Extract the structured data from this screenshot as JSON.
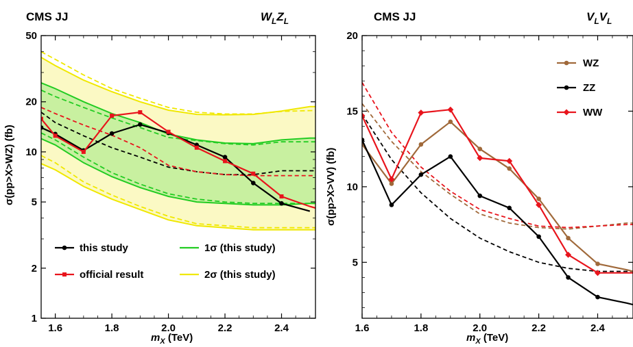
{
  "chart_data": [
    {
      "type": "line",
      "header_left": "CMS JJ",
      "header_right": "W",
      "header_right_parts": [
        "W",
        "L",
        "Z",
        "L"
      ],
      "xlabel_parts": [
        "m",
        "X",
        " (TeV)"
      ],
      "ylabel": "σ(pp>X>WZ) (fb)",
      "xlim": [
        1.55,
        2.52
      ],
      "ylim": [
        1,
        50
      ],
      "y_scale": "log",
      "x_ticks": [
        "1.6",
        "1.8",
        "2.0",
        "2.2",
        "2.4"
      ],
      "y_ticks": [
        "1",
        "2",
        "5",
        "10",
        "20",
        "50"
      ],
      "legend_position": "bottom",
      "x": [
        1.55,
        1.6,
        1.7,
        1.8,
        1.9,
        2.0,
        2.1,
        2.2,
        2.3,
        2.4,
        2.5,
        2.52
      ],
      "series": [
        {
          "name": "this study",
          "color": "#000000",
          "style": "solid-dots",
          "x": [
            1.55,
            1.6,
            1.7,
            1.8,
            1.9,
            2.0,
            2.1,
            2.2,
            2.3,
            2.4,
            2.5
          ],
          "values": [
            14.0,
            12.8,
            10.2,
            12.9,
            14.6,
            13.0,
            11.0,
            9.3,
            6.5,
            4.9,
            4.4
          ]
        },
        {
          "name": "official result",
          "color": "#e8141c",
          "style": "solid-squares",
          "x": [
            1.55,
            1.6,
            1.7,
            1.8,
            1.9,
            2.0,
            2.1,
            2.2,
            2.3,
            2.4,
            2.5,
            2.52
          ],
          "values": [
            15.8,
            12.5,
            10.0,
            16.5,
            17.3,
            13.2,
            10.6,
            8.8,
            7.4,
            5.4,
            4.7,
            4.6
          ]
        },
        {
          "name": "",
          "color": "#000000",
          "style": "dashed",
          "values": [
            17.3,
            15.0,
            12.5,
            10.6,
            9.3,
            8.1,
            7.6,
            7.3,
            7.3,
            7.7,
            7.7,
            7.7
          ]
        },
        {
          "name": "",
          "color": "#e8141c",
          "style": "dashed",
          "values": [
            18.5,
            17.0,
            14.5,
            12.6,
            10.6,
            8.3,
            7.6,
            7.3,
            7.2,
            7.2,
            7.2,
            7.2
          ]
        },
        {
          "name": "1σ (this study)",
          "color": "#22cc22",
          "style": "band",
          "low": [
            12.0,
            11.0,
            8.6,
            7.1,
            6.1,
            5.4,
            5.0,
            4.9,
            4.8,
            4.8,
            4.9,
            4.9
          ],
          "high": [
            26.0,
            24.0,
            20.0,
            17.0,
            15.0,
            12.8,
            11.8,
            11.3,
            11.2,
            11.8,
            12.1,
            12.1
          ],
          "low_dashed": [
            13.0,
            11.8,
            9.3,
            7.5,
            6.4,
            5.6,
            5.2,
            5.0,
            4.9,
            4.9,
            4.9,
            4.9
          ],
          "high_dashed": [
            23.5,
            21.5,
            18.5,
            16.0,
            14.0,
            12.2,
            11.7,
            11.2,
            11.0,
            11.5,
            11.5,
            11.5
          ]
        },
        {
          "name": "2σ (this study)",
          "color": "#f0e800",
          "style": "band",
          "low": [
            8.5,
            7.8,
            6.2,
            5.2,
            4.5,
            3.9,
            3.6,
            3.5,
            3.4,
            3.4,
            3.4,
            3.4
          ],
          "high": [
            37.0,
            33.0,
            27.0,
            23.0,
            20.0,
            17.8,
            16.8,
            16.7,
            16.8,
            17.6,
            18.7,
            18.7
          ],
          "low_dashed": [
            9.5,
            8.6,
            6.6,
            5.5,
            4.7,
            4.1,
            3.7,
            3.6,
            3.5,
            3.5,
            3.5,
            3.5
          ],
          "high_dashed": [
            40.0,
            36.0,
            29.0,
            24.0,
            21.0,
            18.5,
            17.3,
            16.9,
            16.9,
            17.5,
            17.7,
            17.7
          ]
        }
      ]
    },
    {
      "type": "line",
      "header_left": "CMS JJ",
      "header_right_parts": [
        "V",
        "L",
        "V",
        "L"
      ],
      "xlabel_parts": [
        "m",
        "X",
        " (TeV)"
      ],
      "ylabel": "σ(pp>X>VV) (fb)",
      "xlim": [
        1.6,
        2.52
      ],
      "ylim": [
        1.3,
        20
      ],
      "y_scale": "linear",
      "x_ticks": [
        "1.6",
        "1.8",
        "2.0",
        "2.2",
        "2.4"
      ],
      "y_ticks": [
        "5",
        "10",
        "15",
        "20"
      ],
      "legend_position": "top-right",
      "series": [
        {
          "name": "WZ",
          "color": "#a0693a",
          "style": "solid-dots",
          "x": [
            1.6,
            1.7,
            1.8,
            1.9,
            2.0,
            2.1,
            2.2,
            2.3,
            2.4,
            2.5,
            2.52
          ],
          "values": [
            12.8,
            10.2,
            12.8,
            14.3,
            12.5,
            11.2,
            9.2,
            6.6,
            4.9,
            4.5,
            4.4
          ]
        },
        {
          "name": "ZZ",
          "color": "#000000",
          "style": "solid-dots",
          "x": [
            1.6,
            1.7,
            1.8,
            1.9,
            2.0,
            2.1,
            2.2,
            2.3,
            2.4,
            2.5,
            2.52
          ],
          "values": [
            13.1,
            8.8,
            10.8,
            12.0,
            9.4,
            8.6,
            6.7,
            4.0,
            2.7,
            2.3,
            2.2
          ]
        },
        {
          "name": "WW",
          "color": "#e8141c",
          "style": "solid-diamonds",
          "x": [
            1.6,
            1.7,
            1.8,
            1.9,
            2.0,
            2.1,
            2.2,
            2.3,
            2.4,
            2.5,
            2.52
          ],
          "values": [
            14.7,
            10.5,
            14.9,
            15.1,
            11.9,
            11.7,
            8.8,
            5.5,
            4.3,
            4.3,
            4.3
          ]
        },
        {
          "name": "",
          "color": "#a0693a",
          "style": "dashed",
          "x": [
            1.6,
            1.7,
            1.8,
            1.9,
            2.0,
            2.1,
            2.2,
            2.3,
            2.4,
            2.5,
            2.52
          ],
          "values": [
            15.5,
            13.0,
            11.0,
            9.5,
            8.2,
            7.6,
            7.3,
            7.2,
            7.4,
            7.6,
            7.6
          ]
        },
        {
          "name": "",
          "color": "#000000",
          "style": "dashed",
          "x": [
            1.6,
            1.7,
            1.8,
            1.9,
            2.0,
            2.1,
            2.2,
            2.3,
            2.4,
            2.5,
            2.52
          ],
          "values": [
            14.8,
            11.8,
            9.6,
            7.9,
            6.6,
            5.7,
            5.0,
            4.6,
            4.4,
            4.4,
            4.4
          ]
        },
        {
          "name": "",
          "color": "#e8141c",
          "style": "dashed",
          "x": [
            1.6,
            1.7,
            1.8,
            1.9,
            2.0,
            2.1,
            2.2,
            2.3,
            2.4,
            2.5,
            2.52
          ],
          "values": [
            16.9,
            13.6,
            11.3,
            9.7,
            8.5,
            7.9,
            7.4,
            7.3,
            7.4,
            7.5,
            7.5
          ]
        }
      ]
    }
  ]
}
